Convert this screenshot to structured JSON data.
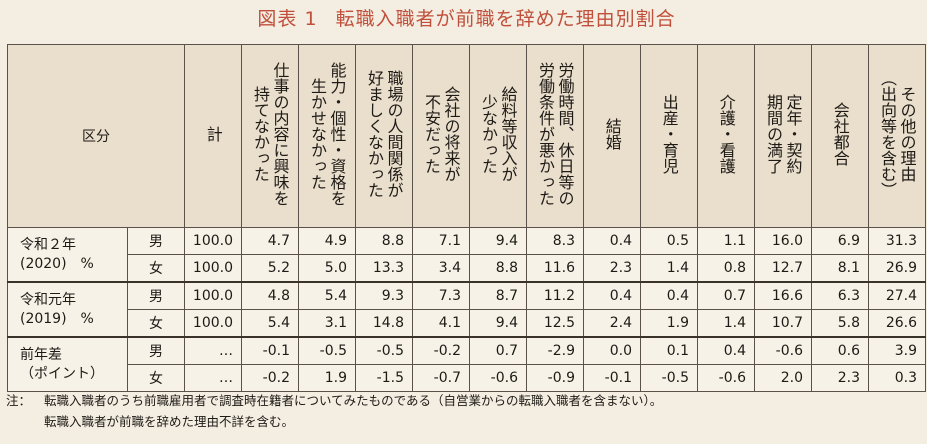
{
  "title": {
    "prefix": "図表 1",
    "text": "転職入職者が前職を辞めた理由別割合"
  },
  "header": {
    "kubun": "区分",
    "total": "計",
    "reasons": [
      "仕事の内容に興味を\n持てなかった",
      "能力・個性・資格を\n生かせなかった",
      "職場の人間関係が\n好ましくなかった",
      "会社の将来が\n不安だった",
      "給料等収入が\n少なかった",
      "労働時間、休日等の\n労働条件が悪かった",
      "結婚",
      "出産・育児",
      "介護・看護",
      "定年・契約\n期間の満了",
      "会社都合",
      "その他の理由\n（出向等を含む）"
    ]
  },
  "groups": [
    {
      "label_line1": "令和２年",
      "label_line2": "(2020)　%",
      "rows": [
        {
          "sex": "男",
          "total": "100.0",
          "values": [
            "4.7",
            "4.9",
            "8.8",
            "7.1",
            "9.4",
            "8.3",
            "0.4",
            "0.5",
            "1.1",
            "16.0",
            "6.9",
            "31.3"
          ]
        },
        {
          "sex": "女",
          "total": "100.0",
          "values": [
            "5.2",
            "5.0",
            "13.3",
            "3.4",
            "8.8",
            "11.6",
            "2.3",
            "1.4",
            "0.8",
            "12.7",
            "8.1",
            "26.9"
          ]
        }
      ]
    },
    {
      "label_line1": "令和元年",
      "label_line2": "(2019)　%",
      "rows": [
        {
          "sex": "男",
          "total": "100.0",
          "values": [
            "4.8",
            "5.4",
            "9.3",
            "7.3",
            "8.7",
            "11.2",
            "0.4",
            "0.4",
            "0.7",
            "16.6",
            "6.3",
            "27.4"
          ]
        },
        {
          "sex": "女",
          "total": "100.0",
          "values": [
            "5.4",
            "3.1",
            "14.8",
            "4.1",
            "9.4",
            "12.5",
            "2.4",
            "1.9",
            "1.4",
            "10.7",
            "5.8",
            "26.6"
          ]
        }
      ]
    },
    {
      "label_line1": "前年差",
      "label_line2": "（ポイント）",
      "rows": [
        {
          "sex": "男",
          "total": "…",
          "values": [
            "-0.1",
            "-0.5",
            "-0.5",
            "-0.2",
            "0.7",
            "-2.9",
            "0.0",
            "0.1",
            "0.4",
            "-0.6",
            "0.6",
            "3.9"
          ]
        },
        {
          "sex": "女",
          "total": "…",
          "values": [
            "-0.2",
            "1.9",
            "-1.5",
            "-0.7",
            "-0.6",
            "-0.9",
            "-0.1",
            "-0.5",
            "-0.6",
            "2.0",
            "2.3",
            "0.3"
          ]
        }
      ]
    }
  ],
  "note": {
    "label": "注：",
    "line1": "転職入職者のうち前職雇用者で調査時在籍者についてみたものである（自営業からの転職入職者を含まない）。",
    "line2": "転職入職者が前職を辞めた理由不詳を含む。"
  }
}
